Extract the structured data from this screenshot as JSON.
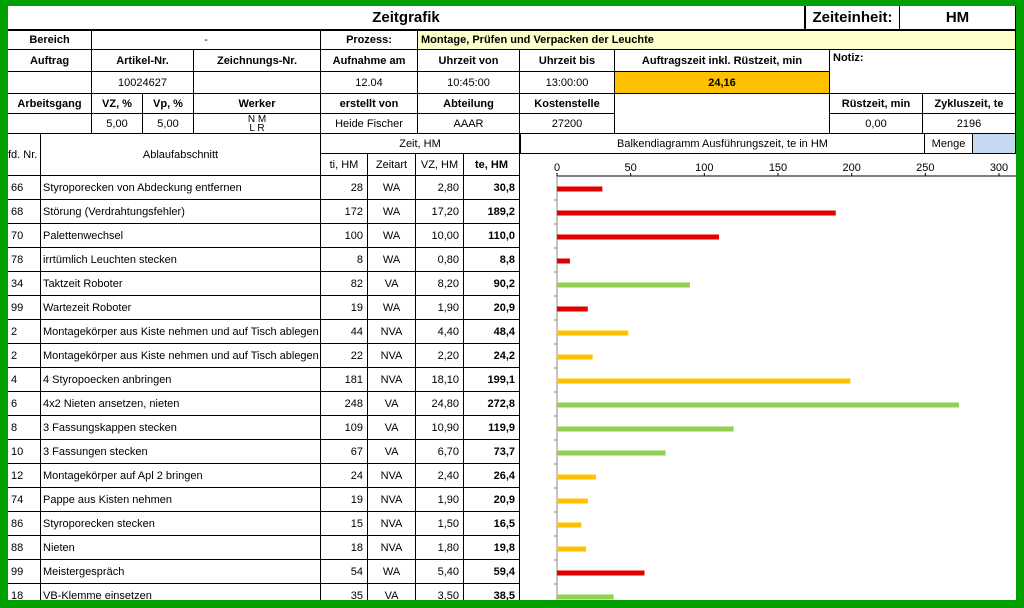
{
  "header": {
    "title": "Zeitgrafik",
    "zeiteinheit_label": "Zeiteinheit:",
    "zeiteinheit_value": "HM",
    "bereich_label": "Bereich",
    "bereich_value": "-",
    "prozess_label": "Prozess:",
    "prozess_value": "Montage, Prüfen und Verpacken der Leuchte",
    "auftrag_label": "Auftrag",
    "artikel_label": "Artikel-Nr.",
    "artikel_value": "10024627",
    "zeichnung_label": "Zeichnungs-Nr.",
    "aufnahme_label": "Aufnahme am",
    "aufnahme_value": "12.04",
    "uhrzeit_von_label": "Uhrzeit von",
    "uhrzeit_von_value": "10:45:00",
    "uhrzeit_bis_label": "Uhrzeit bis",
    "uhrzeit_bis_value": "13:00:00",
    "auftragszeit_label": "Auftragszeit inkl. Rüstzeit, min",
    "auftragszeit_value": "24,16",
    "notiz_label": "Notiz:",
    "arbeitsgang_label": "Arbeitsgang",
    "vz_label": "VZ, %",
    "vz_value": "5,00",
    "vp_label": "Vp, %",
    "vp_value": "5,00",
    "werker_label": "Werker",
    "werker_value1": "N M",
    "werker_value2": "L R",
    "erstellt_label": "erstellt von",
    "erstellt_value": "Heide Fischer",
    "abteilung_label": "Abteilung",
    "abteilung_value": "AAAR",
    "kostenstelle_label": "Kostenstelle",
    "kostenstelle_value": "27200",
    "ruestzeit_label": "Rüstzeit, min",
    "ruestzeit_value": "0,00",
    "zykluszeit_label": "Zykluszeit, te",
    "zykluszeit_value": "2196"
  },
  "table": {
    "col_nr": "fd. Nr.",
    "col_ablauf": "Ablaufabschnitt",
    "col_zeit_group": "Zeit, HM",
    "col_ti": "ti, HM",
    "col_zeitart": "Zeitart",
    "col_vz": "VZ, HM",
    "col_te": "te, HM",
    "chart_header": "Balkendiagramm Ausführungszeit, te in HM",
    "menge_label": "Menge",
    "rows": [
      {
        "nr": "66",
        "text": "Styroporecken von Abdeckung entfernen",
        "ti": "28",
        "art": "WA",
        "vz": "2,80",
        "te": "30,8"
      },
      {
        "nr": "68",
        "text": "Störung (Verdrahtungsfehler)",
        "ti": "172",
        "art": "WA",
        "vz": "17,20",
        "te": "189,2"
      },
      {
        "nr": "70",
        "text": "Palettenwechsel",
        "ti": "100",
        "art": "WA",
        "vz": "10,00",
        "te": "110,0"
      },
      {
        "nr": "78",
        "text": "irrtümlich Leuchten stecken",
        "ti": "8",
        "art": "WA",
        "vz": "0,80",
        "te": "8,8"
      },
      {
        "nr": "34",
        "text": "Taktzeit Roboter",
        "ti": "82",
        "art": "VA",
        "vz": "8,20",
        "te": "90,2"
      },
      {
        "nr": "99",
        "text": "Wartezeit Roboter",
        "ti": "19",
        "art": "WA",
        "vz": "1,90",
        "te": "20,9"
      },
      {
        "nr": "2",
        "text": "Montagekörper aus Kiste nehmen und auf Tisch ablegen",
        "ti": "44",
        "art": "NVA",
        "vz": "4,40",
        "te": "48,4"
      },
      {
        "nr": "2",
        "text": "Montagekörper aus Kiste nehmen und auf Tisch ablegen",
        "ti": "22",
        "art": "NVA",
        "vz": "2,20",
        "te": "24,2"
      },
      {
        "nr": "4",
        "text": "4 Styropoecken anbringen",
        "ti": "181",
        "art": "NVA",
        "vz": "18,10",
        "te": "199,1"
      },
      {
        "nr": "6",
        "text": "4x2 Nieten ansetzen, nieten",
        "ti": "248",
        "art": "VA",
        "vz": "24,80",
        "te": "272,8"
      },
      {
        "nr": "8",
        "text": "3 Fassungskappen stecken",
        "ti": "109",
        "art": "VA",
        "vz": "10,90",
        "te": "119,9"
      },
      {
        "nr": "10",
        "text": "3 Fassungen stecken",
        "ti": "67",
        "art": "VA",
        "vz": "6,70",
        "te": "73,7"
      },
      {
        "nr": "12",
        "text": "Montagekörper auf Apl 2 bringen",
        "ti": "24",
        "art": "NVA",
        "vz": "2,40",
        "te": "26,4"
      },
      {
        "nr": "74",
        "text": "Pappe aus Kisten nehmen",
        "ti": "19",
        "art": "NVA",
        "vz": "1,90",
        "te": "20,9"
      },
      {
        "nr": "86",
        "text": "Styroporecken stecken",
        "ti": "15",
        "art": "NVA",
        "vz": "1,50",
        "te": "16,5"
      },
      {
        "nr": "88",
        "text": "Nieten",
        "ti": "18",
        "art": "NVA",
        "vz": "1,80",
        "te": "19,8"
      },
      {
        "nr": "99",
        "text": "Meistergespräch",
        "ti": "54",
        "art": "WA",
        "vz": "5,40",
        "te": "59,4"
      },
      {
        "nr": "18",
        "text": "VB-Klemme einsetzen",
        "ti": "35",
        "art": "VA",
        "vz": "3,50",
        "te": "38,5"
      }
    ]
  },
  "colors": {
    "WA": "#e00000",
    "VA": "#92d050",
    "NVA": "#ffc000",
    "highlight": "#ffc000",
    "prozess_bg": "#ffffcc",
    "menge_bg": "#c5d9f1",
    "frame": "#00a000"
  },
  "chart_data": {
    "type": "bar",
    "orientation": "horizontal",
    "title": "Balkendiagramm Ausführungszeit, te in HM",
    "xlim": [
      0,
      300
    ],
    "xticks": [
      0,
      50,
      100,
      150,
      200,
      250,
      300
    ],
    "categories": [
      "Styroporecken von Abdeckung entfernen",
      "Störung (Verdrahtungsfehler)",
      "Palettenwechsel",
      "irrtümlich Leuchten stecken",
      "Taktzeit Roboter",
      "Wartezeit Roboter",
      "Montagekörper aus Kiste nehmen und auf Tisch ablegen",
      "Montagekörper aus Kiste nehmen und auf Tisch ablegen",
      "4 Styropoecken anbringen",
      "4x2 Nieten ansetzen, nieten",
      "3 Fassungskappen stecken",
      "3 Fassungen stecken",
      "Montagekörper auf Apl 2 bringen",
      "Pappe aus Kisten nehmen",
      "Styroporecken stecken",
      "Nieten",
      "Meistergespräch",
      "VB-Klemme einsetzen"
    ],
    "values": [
      30.8,
      189.2,
      110.0,
      8.8,
      90.2,
      20.9,
      48.4,
      24.2,
      199.1,
      272.8,
      119.9,
      73.7,
      26.4,
      20.9,
      16.5,
      19.8,
      59.4,
      38.5
    ],
    "bar_types": [
      "WA",
      "WA",
      "WA",
      "WA",
      "VA",
      "WA",
      "NVA",
      "NVA",
      "NVA",
      "VA",
      "VA",
      "VA",
      "NVA",
      "NVA",
      "NVA",
      "NVA",
      "WA",
      "VA"
    ],
    "grid": false,
    "legend": "none"
  }
}
